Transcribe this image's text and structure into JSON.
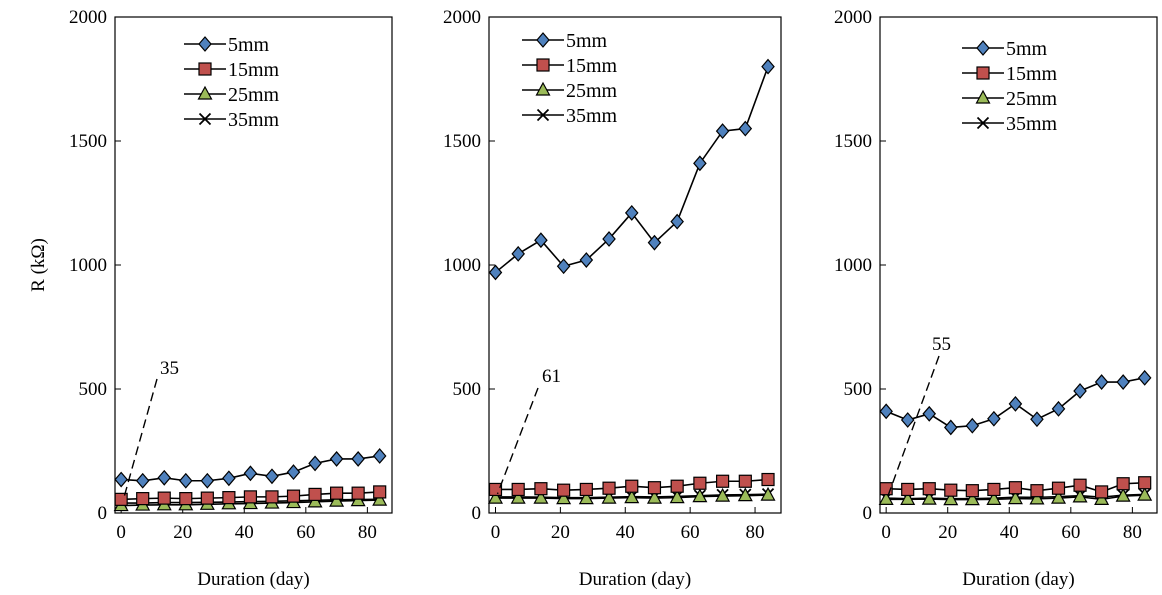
{
  "chart_data": [
    {
      "type": "line",
      "xlabel": "Duration (day)",
      "ylabel": "R (kΩ)",
      "xlim": [
        -2,
        88
      ],
      "ylim": [
        0,
        2000
      ],
      "xticks": [
        0,
        20,
        40,
        60,
        80
      ],
      "yticks": [
        0,
        500,
        1000,
        1500,
        2000
      ],
      "legend": "top-right",
      "grid": false,
      "x": [
        0,
        7,
        14,
        21,
        28,
        35,
        42,
        49,
        56,
        63,
        70,
        77,
        84
      ],
      "series": [
        {
          "name": "5mm",
          "marker": "diamond",
          "color": "#4F81BD",
          "values": [
            135,
            130,
            142,
            130,
            130,
            140,
            160,
            148,
            165,
            200,
            218,
            218,
            230
          ]
        },
        {
          "name": "15mm",
          "marker": "square",
          "color": "#C0504D",
          "values": [
            55,
            58,
            60,
            58,
            60,
            62,
            65,
            65,
            68,
            75,
            80,
            80,
            85
          ]
        },
        {
          "name": "25mm",
          "marker": "triangle",
          "color": "#9BBB59",
          "values": [
            30,
            32,
            33,
            33,
            35,
            37,
            38,
            40,
            42,
            45,
            48,
            50,
            52
          ]
        },
        {
          "name": "35mm",
          "marker": "x",
          "color": "#000000",
          "values": [
            40,
            40,
            42,
            42,
            43,
            44,
            46,
            47,
            49,
            51,
            53,
            54,
            55
          ]
        }
      ],
      "annotation": {
        "text": "35",
        "x": 0,
        "y": 35
      }
    },
    {
      "type": "line",
      "xlabel": "Duration (day)",
      "ylabel": "",
      "xlim": [
        -2,
        88
      ],
      "ylim": [
        0,
        2000
      ],
      "xticks": [
        0,
        20,
        40,
        60,
        80
      ],
      "yticks": [
        0,
        500,
        1000,
        1500,
        2000
      ],
      "legend": "top",
      "grid": false,
      "x": [
        0,
        7,
        14,
        21,
        28,
        35,
        42,
        49,
        56,
        63,
        70,
        77,
        84
      ],
      "series": [
        {
          "name": "5mm",
          "marker": "diamond",
          "color": "#4F81BD",
          "values": [
            970,
            1045,
            1100,
            995,
            1020,
            1105,
            1210,
            1090,
            1175,
            1410,
            1540,
            1550,
            1800
          ]
        },
        {
          "name": "15mm",
          "marker": "square",
          "color": "#C0504D",
          "values": [
            95,
            95,
            98,
            92,
            95,
            100,
            108,
            102,
            108,
            120,
            128,
            128,
            135
          ]
        },
        {
          "name": "25mm",
          "marker": "triangle",
          "color": "#9BBB59",
          "values": [
            60,
            60,
            60,
            58,
            58,
            60,
            62,
            60,
            62,
            66,
            68,
            70,
            72
          ]
        },
        {
          "name": "35mm",
          "marker": "x",
          "color": "#000000",
          "values": [
            65,
            65,
            64,
            62,
            62,
            64,
            66,
            65,
            67,
            70,
            73,
            74,
            76
          ]
        }
      ],
      "annotation": {
        "text": "61",
        "x": 0,
        "y": 61
      }
    },
    {
      "type": "line",
      "xlabel": "Duration (day)",
      "ylabel": "",
      "xlim": [
        -2,
        88
      ],
      "ylim": [
        0,
        2000
      ],
      "xticks": [
        0,
        20,
        40,
        60,
        80
      ],
      "yticks": [
        0,
        500,
        1000,
        1500,
        2000
      ],
      "legend": "top-right",
      "grid": false,
      "x": [
        0,
        7,
        14,
        21,
        28,
        35,
        42,
        49,
        56,
        63,
        70,
        77,
        84
      ],
      "series": [
        {
          "name": "5mm",
          "marker": "diamond",
          "color": "#4F81BD",
          "values": [
            410,
            375,
            400,
            345,
            352,
            380,
            440,
            378,
            420,
            492,
            528,
            528,
            545
          ]
        },
        {
          "name": "15mm",
          "marker": "square",
          "color": "#C0504D",
          "values": [
            98,
            95,
            98,
            92,
            90,
            95,
            102,
            90,
            100,
            112,
            85,
            118,
            122
          ]
        },
        {
          "name": "25mm",
          "marker": "triangle",
          "color": "#9BBB59",
          "values": [
            55,
            55,
            56,
            54,
            54,
            55,
            58,
            57,
            60,
            65,
            55,
            68,
            72
          ]
        },
        {
          "name": "35mm",
          "marker": "x",
          "color": "#000000",
          "values": [
            60,
            58,
            60,
            58,
            58,
            60,
            64,
            63,
            66,
            70,
            64,
            72,
            75
          ]
        }
      ],
      "annotation": {
        "text": "55",
        "x": 0,
        "y": 55
      }
    }
  ]
}
